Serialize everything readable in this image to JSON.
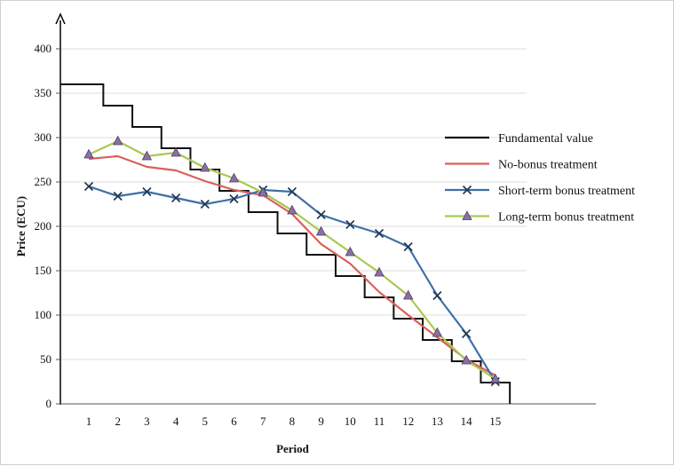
{
  "chart_data": {
    "type": "line",
    "title": "",
    "xlabel": "Period",
    "ylabel": "Price (ECU)",
    "x": [
      1,
      2,
      3,
      4,
      5,
      6,
      7,
      8,
      9,
      10,
      11,
      12,
      13,
      14,
      15
    ],
    "xlim": [
      0,
      15.5
    ],
    "ylim": [
      0,
      400
    ],
    "y_ticks": [
      0,
      50,
      100,
      150,
      200,
      250,
      300,
      350,
      400
    ],
    "x_tick_labels": [
      "1",
      "2",
      "3",
      "4",
      "5",
      "6",
      "7",
      "8",
      "9",
      "10",
      "11",
      "12",
      "13",
      "14",
      "15"
    ],
    "y_tick_labels": [
      "0",
      "50",
      "100",
      "150",
      "200",
      "250",
      "300",
      "350",
      "400"
    ],
    "grid": "horizontal",
    "legend_position": "right",
    "series": [
      {
        "name": "Fundamental value",
        "style": "step",
        "color": "#111111",
        "marker": "none",
        "values": [
          360,
          336,
          312,
          288,
          264,
          240,
          216,
          192,
          168,
          144,
          120,
          96,
          72,
          48,
          24
        ]
      },
      {
        "name": "No-bonus treatment",
        "style": "line",
        "color": "#d9605a",
        "marker": "none",
        "values": [
          276,
          279,
          267,
          263,
          251,
          241,
          235,
          214,
          180,
          158,
          126,
          100,
          75,
          50,
          32
        ]
      },
      {
        "name": "Short-term bonus treatment",
        "style": "line",
        "color": "#3f6fa8",
        "marker": "x",
        "values": [
          245,
          234,
          239,
          232,
          225,
          231,
          241,
          239,
          213,
          202,
          192,
          177,
          122,
          79,
          25
        ]
      },
      {
        "name": "Long-term bonus treatment",
        "style": "line",
        "color": "#a8c950",
        "marker": "triangle",
        "marker_color": "#8a6fa8",
        "values": [
          281,
          296,
          279,
          283,
          266,
          254,
          238,
          218,
          194,
          171,
          148,
          122,
          80,
          49,
          28
        ]
      }
    ]
  }
}
